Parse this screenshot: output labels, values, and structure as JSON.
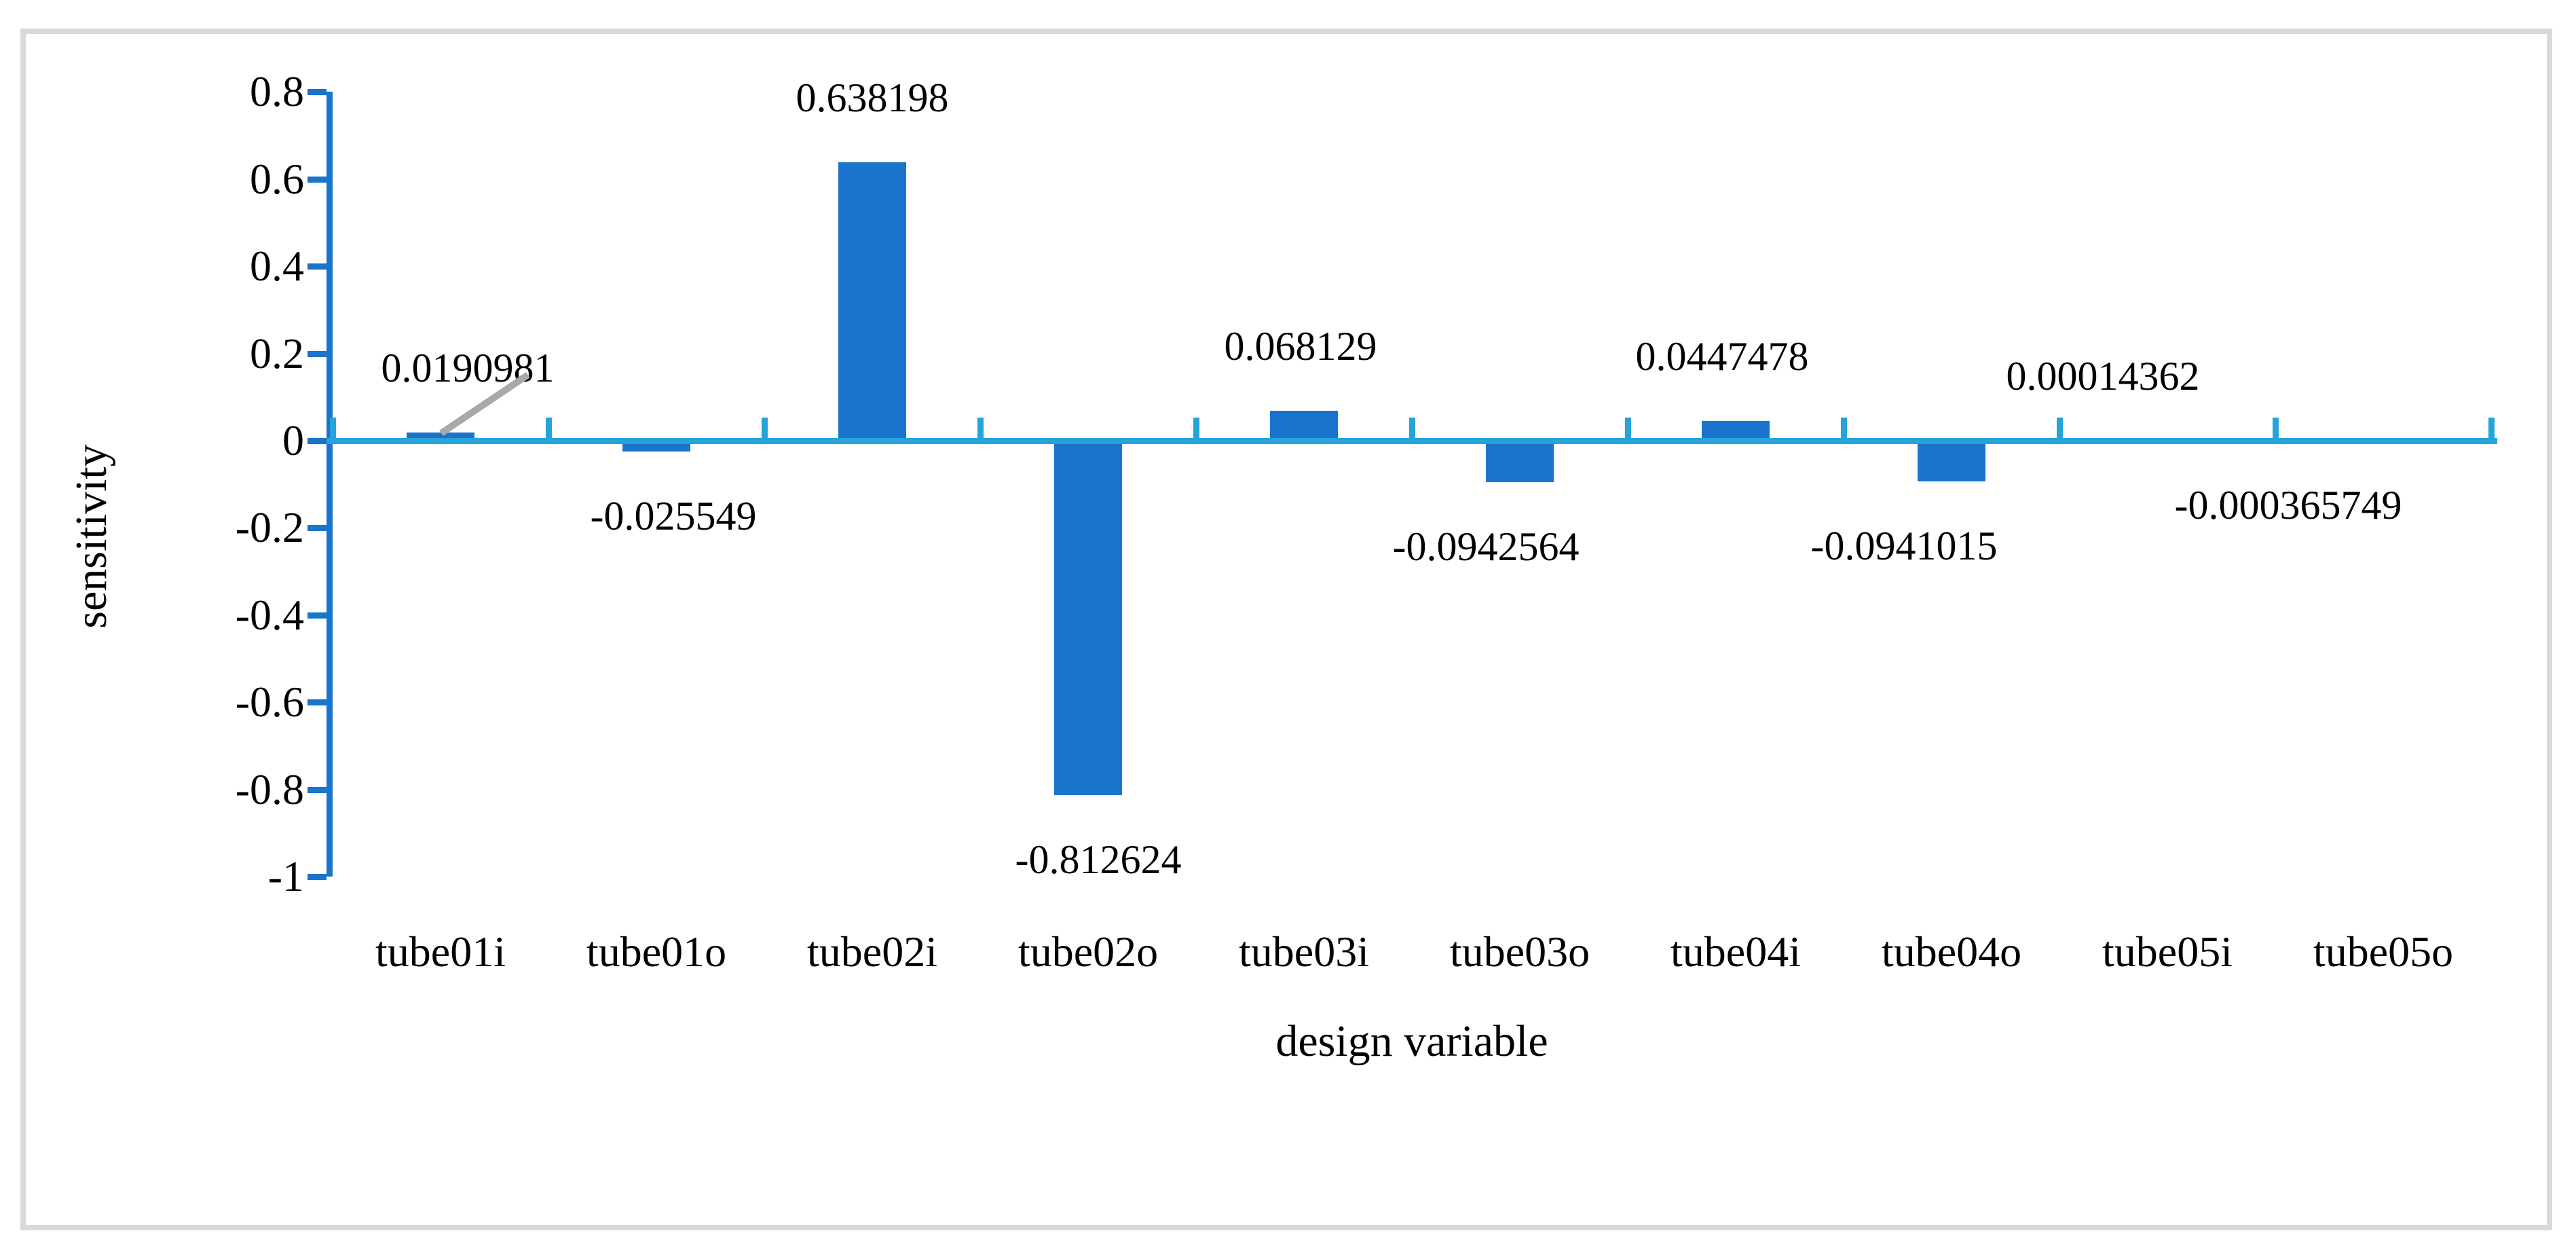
{
  "chart_data": {
    "type": "bar",
    "title": "",
    "xlabel": "design variable",
    "ylabel": "sensitivity",
    "categories": [
      "tube01i",
      "tube01o",
      "tube02i",
      "tube02o",
      "tube03i",
      "tube03o",
      "tube04i",
      "tube04o",
      "tube05i",
      "tube05o"
    ],
    "values": [
      0.0190981,
      -0.025549,
      0.638198,
      -0.812624,
      0.068129,
      -0.0942564,
      0.0447478,
      -0.0941015,
      0.00014362,
      -0.000365749
    ],
    "data_labels": [
      "0.0190981",
      "-0.025549",
      "0.638198",
      "-0.812624",
      "0.068129",
      "-0.0942564",
      "0.0447478",
      "-0.0941015",
      "0.00014362",
      "-0.000365749"
    ],
    "y_tick_labels": [
      "0.8",
      "0.6",
      "0.4",
      "0.2",
      "0",
      "-0.2",
      "-0.4",
      "-0.6",
      "-0.8",
      "-1"
    ],
    "y_tick_values": [
      0.8,
      0.6,
      0.4,
      0.2,
      0,
      -0.2,
      -0.4,
      -0.6,
      -0.8,
      -1
    ],
    "ylim": [
      -1,
      0.8
    ],
    "grid": "off",
    "legend": "none",
    "colors": {
      "bar": "#1B74CB",
      "y_axis": "#1B74CB",
      "x_axis": "#27A3DC",
      "leader_line": "#A9A9A9",
      "figure_border": "#D9D9D9",
      "text": "#000000",
      "background": "#FFFFFF"
    }
  }
}
